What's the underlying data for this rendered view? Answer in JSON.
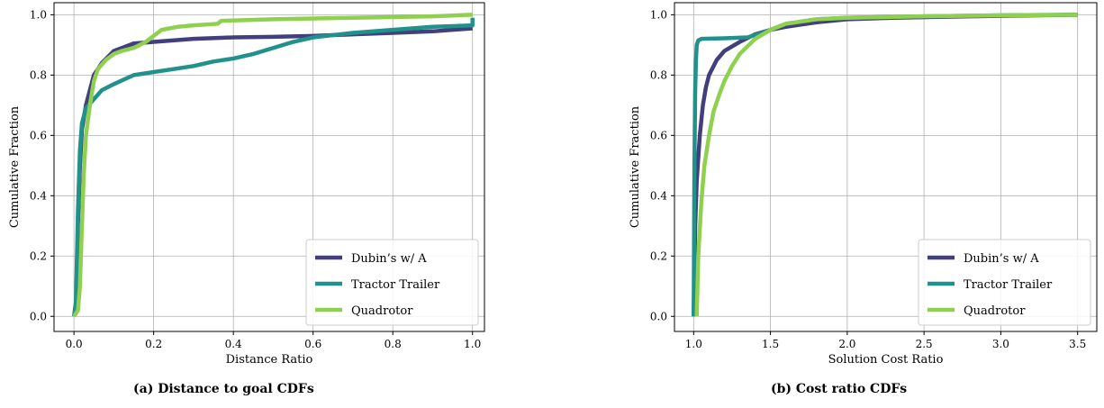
{
  "captions": {
    "a": "(a) Distance to goal CDFs",
    "b": "(b) Cost ratio CDFs"
  },
  "colors": {
    "dubins": "#413f7e",
    "tractor": "#21918c",
    "quadrotor": "#8fd14f",
    "grid": "#b0b0b0",
    "axis": "#000000"
  },
  "chart_data": [
    {
      "type": "line",
      "caption": "(a) Distance to goal CDFs",
      "xlabel": "Distance Ratio",
      "ylabel": "Cumulative Fraction",
      "xlim": [
        -0.05,
        1.03
      ],
      "ylim": [
        -0.05,
        1.04
      ],
      "xticks": [
        0.0,
        0.2,
        0.4,
        0.6,
        0.8,
        1.0
      ],
      "xtick_labels": [
        "0.0",
        "0.2",
        "0.4",
        "0.6",
        "0.8",
        "1.0"
      ],
      "yticks": [
        0.0,
        0.2,
        0.4,
        0.6,
        0.8,
        1.0
      ],
      "ytick_labels": [
        "0.0",
        "0.2",
        "0.4",
        "0.6",
        "0.8",
        "1.0"
      ],
      "grid": true,
      "legend_position": "lower-right",
      "series": [
        {
          "name": "Dubin’s w/ A",
          "color_key": "dubins",
          "points": [
            [
              0,
              0
            ],
            [
              0.005,
              0.02
            ],
            [
              0.01,
              0.3
            ],
            [
              0.015,
              0.5
            ],
            [
              0.02,
              0.62
            ],
            [
              0.03,
              0.7
            ],
            [
              0.04,
              0.75
            ],
            [
              0.05,
              0.8
            ],
            [
              0.07,
              0.84
            ],
            [
              0.1,
              0.88
            ],
            [
              0.15,
              0.905
            ],
            [
              0.2,
              0.91
            ],
            [
              0.3,
              0.92
            ],
            [
              0.4,
              0.925
            ],
            [
              0.5,
              0.927
            ],
            [
              0.6,
              0.93
            ],
            [
              0.7,
              0.935
            ],
            [
              0.8,
              0.94
            ],
            [
              0.9,
              0.945
            ],
            [
              1.0,
              0.955
            ]
          ]
        },
        {
          "name": "Tractor Trailer",
          "color_key": "tractor",
          "points": [
            [
              0,
              0
            ],
            [
              0.005,
              0.05
            ],
            [
              0.01,
              0.35
            ],
            [
              0.015,
              0.55
            ],
            [
              0.02,
              0.64
            ],
            [
              0.03,
              0.69
            ],
            [
              0.05,
              0.72
            ],
            [
              0.07,
              0.75
            ],
            [
              0.1,
              0.77
            ],
            [
              0.15,
              0.8
            ],
            [
              0.2,
              0.81
            ],
            [
              0.25,
              0.82
            ],
            [
              0.3,
              0.83
            ],
            [
              0.35,
              0.845
            ],
            [
              0.4,
              0.855
            ],
            [
              0.45,
              0.87
            ],
            [
              0.5,
              0.89
            ],
            [
              0.55,
              0.91
            ],
            [
              0.6,
              0.925
            ],
            [
              0.7,
              0.94
            ],
            [
              0.8,
              0.95
            ],
            [
              0.9,
              0.96
            ],
            [
              1.0,
              0.965
            ],
            [
              1.0,
              0.99
            ]
          ]
        },
        {
          "name": "Quadrotor",
          "color_key": "quadrotor",
          "points": [
            [
              0,
              0
            ],
            [
              0.01,
              0.02
            ],
            [
              0.015,
              0.1
            ],
            [
              0.02,
              0.3
            ],
            [
              0.025,
              0.48
            ],
            [
              0.03,
              0.6
            ],
            [
              0.04,
              0.7
            ],
            [
              0.05,
              0.78
            ],
            [
              0.06,
              0.82
            ],
            [
              0.08,
              0.85
            ],
            [
              0.1,
              0.87
            ],
            [
              0.12,
              0.88
            ],
            [
              0.15,
              0.89
            ],
            [
              0.18,
              0.91
            ],
            [
              0.2,
              0.93
            ],
            [
              0.22,
              0.95
            ],
            [
              0.26,
              0.96
            ],
            [
              0.3,
              0.965
            ],
            [
              0.36,
              0.97
            ],
            [
              0.37,
              0.98
            ],
            [
              0.5,
              0.985
            ],
            [
              0.7,
              0.99
            ],
            [
              0.9,
              0.995
            ],
            [
              1.0,
              1.0
            ]
          ]
        }
      ]
    },
    {
      "type": "line",
      "caption": "(b) Cost ratio CDFs",
      "xlabel": "Solution Cost Ratio",
      "ylabel": "Cumulative Fraction",
      "xlim": [
        0.875,
        3.625
      ],
      "ylim": [
        -0.05,
        1.04
      ],
      "xticks": [
        1.0,
        1.5,
        2.0,
        2.5,
        3.0,
        3.5
      ],
      "xtick_labels": [
        "1.0",
        "1.5",
        "2.0",
        "2.5",
        "3.0",
        "3.5"
      ],
      "yticks": [
        0.0,
        0.2,
        0.4,
        0.6,
        0.8,
        1.0
      ],
      "ytick_labels": [
        "0.0",
        "0.2",
        "0.4",
        "0.6",
        "0.8",
        "1.0"
      ],
      "grid": true,
      "legend_position": "lower-right",
      "series": [
        {
          "name": "Dubin’s w/ A",
          "color_key": "dubins",
          "points": [
            [
              1.0,
              0
            ],
            [
              1.01,
              0.3
            ],
            [
              1.02,
              0.45
            ],
            [
              1.04,
              0.6
            ],
            [
              1.06,
              0.7
            ],
            [
              1.08,
              0.76
            ],
            [
              1.1,
              0.8
            ],
            [
              1.15,
              0.85
            ],
            [
              1.2,
              0.88
            ],
            [
              1.3,
              0.91
            ],
            [
              1.4,
              0.935
            ],
            [
              1.5,
              0.95
            ],
            [
              1.6,
              0.96
            ],
            [
              1.8,
              0.975
            ],
            [
              2.0,
              0.985
            ],
            [
              2.3,
              0.99
            ],
            [
              2.8,
              0.995
            ],
            [
              3.5,
              1.0
            ]
          ]
        },
        {
          "name": "Tractor Trailer",
          "color_key": "tractor",
          "points": [
            [
              1.0,
              0
            ],
            [
              1.005,
              0.5
            ],
            [
              1.01,
              0.75
            ],
            [
              1.015,
              0.85
            ],
            [
              1.02,
              0.9
            ],
            [
              1.03,
              0.915
            ],
            [
              1.05,
              0.92
            ],
            [
              1.2,
              0.922
            ],
            [
              1.35,
              0.925
            ],
            [
              1.45,
              0.94
            ],
            [
              1.6,
              0.97
            ],
            [
              1.8,
              0.985
            ],
            [
              2.0,
              0.99
            ],
            [
              2.5,
              0.995
            ],
            [
              3.0,
              0.998
            ],
            [
              3.5,
              1.0
            ]
          ]
        },
        {
          "name": "Quadrotor",
          "color_key": "quadrotor",
          "points": [
            [
              1.02,
              0
            ],
            [
              1.03,
              0.2
            ],
            [
              1.05,
              0.38
            ],
            [
              1.07,
              0.5
            ],
            [
              1.1,
              0.6
            ],
            [
              1.13,
              0.68
            ],
            [
              1.17,
              0.74
            ],
            [
              1.2,
              0.78
            ],
            [
              1.25,
              0.83
            ],
            [
              1.3,
              0.87
            ],
            [
              1.4,
              0.92
            ],
            [
              1.5,
              0.95
            ],
            [
              1.6,
              0.97
            ],
            [
              1.8,
              0.985
            ],
            [
              2.0,
              0.99
            ],
            [
              2.5,
              0.995
            ],
            [
              3.0,
              0.998
            ],
            [
              3.5,
              1.0
            ]
          ]
        }
      ]
    }
  ]
}
